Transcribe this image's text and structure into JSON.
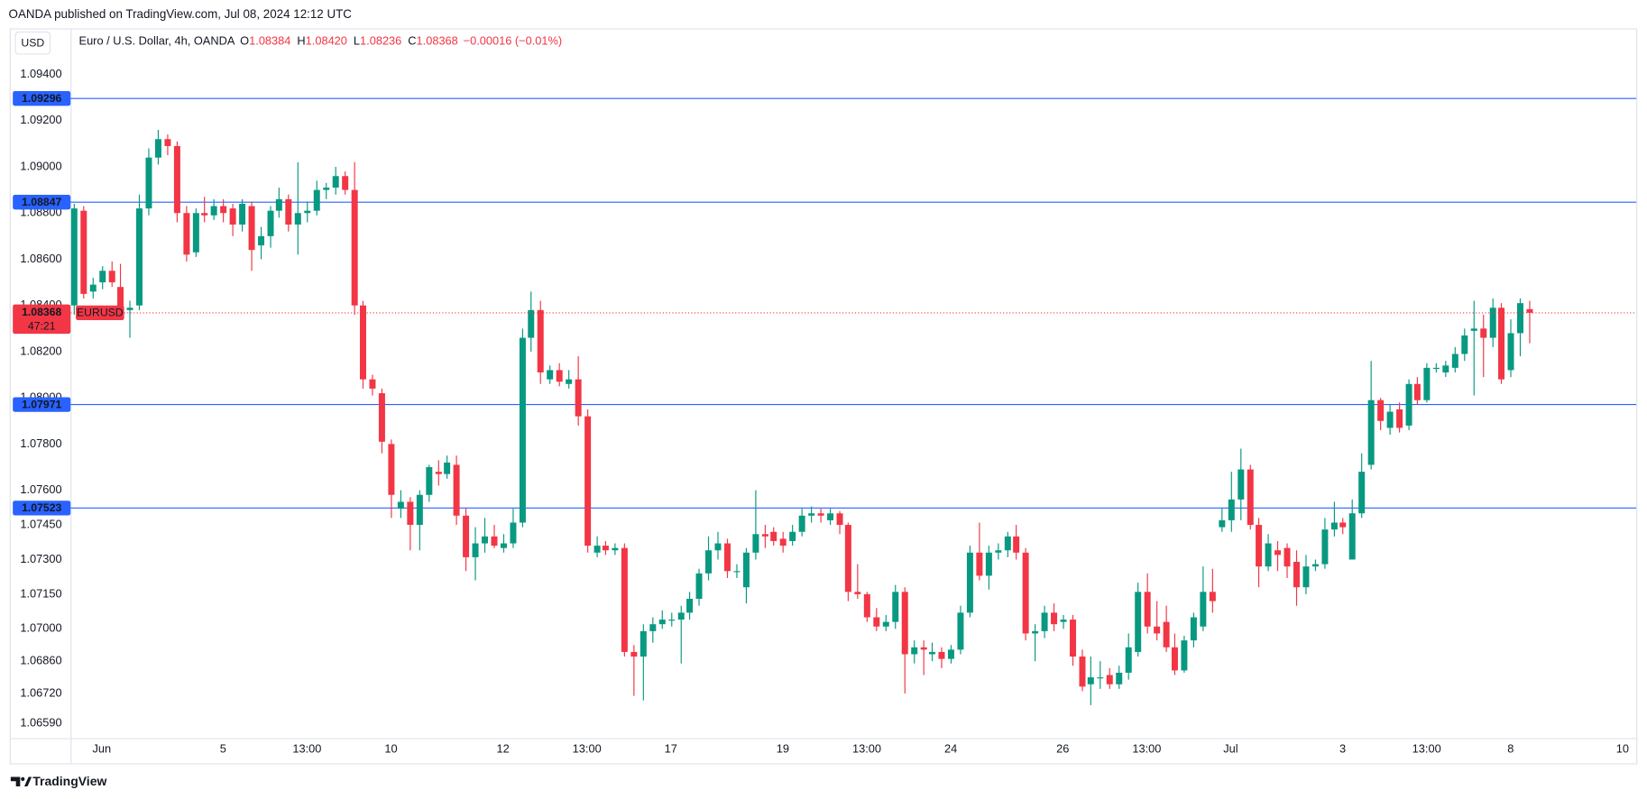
{
  "header": "OANDA published on TradingView.com, Jul 08, 2024 12:12 UTC",
  "footer": "TradingView",
  "chart_data": {
    "type": "candlestick",
    "currency_button": "USD",
    "legend": {
      "title": "Euro / U.S. Dollar, 4h, OANDA",
      "items": [
        {
          "key": "O",
          "value": "1.08384"
        },
        {
          "key": "H",
          "value": "1.08420"
        },
        {
          "key": "L",
          "value": "1.08236"
        },
        {
          "key": "C",
          "value": "1.08368"
        }
      ],
      "change": "−0.00016 (−0.01%)"
    },
    "up_color": "#089981",
    "down_color": "#f23645",
    "ylim": [
      1.06527,
      1.09595
    ],
    "yticks": [
      {
        "value": 1.094,
        "label": "1.09400"
      },
      {
        "value": 1.092,
        "label": "1.09200"
      },
      {
        "value": 1.09,
        "label": "1.09000"
      },
      {
        "value": 1.088,
        "label": "1.08800"
      },
      {
        "value": 1.086,
        "label": "1.08600"
      },
      {
        "value": 1.084,
        "label": "1.08400"
      },
      {
        "value": 1.082,
        "label": "1.08200"
      },
      {
        "value": 1.08,
        "label": "1.08000"
      },
      {
        "value": 1.078,
        "label": "1.07800"
      },
      {
        "value": 1.076,
        "label": "1.07600"
      },
      {
        "value": 1.0745,
        "label": "1.07450"
      },
      {
        "value": 1.073,
        "label": "1.07300"
      },
      {
        "value": 1.0715,
        "label": "1.07150"
      },
      {
        "value": 1.07,
        "label": "1.07000"
      },
      {
        "value": 1.0686,
        "label": "1.06860"
      },
      {
        "value": 1.0672,
        "label": "1.06720"
      },
      {
        "value": 1.0659,
        "label": "1.06590"
      }
    ],
    "xlim": [
      -0.34,
      167.47
    ],
    "xticks": [
      {
        "value": 3,
        "label": "Jun"
      },
      {
        "value": 16,
        "label": "5"
      },
      {
        "value": 25,
        "label": "13:00"
      },
      {
        "value": 34,
        "label": "10"
      },
      {
        "value": 46,
        "label": "12"
      },
      {
        "value": 55,
        "label": "13:00"
      },
      {
        "value": 64,
        "label": "17"
      },
      {
        "value": 76,
        "label": "19"
      },
      {
        "value": 85,
        "label": "13:00"
      },
      {
        "value": 94,
        "label": "24"
      },
      {
        "value": 106,
        "label": "26"
      },
      {
        "value": 115,
        "label": "13:00"
      },
      {
        "value": 124,
        "label": "Jul"
      },
      {
        "value": 136,
        "label": "3"
      },
      {
        "value": 145,
        "label": "13:00"
      },
      {
        "value": 154,
        "label": "8"
      },
      {
        "value": 166,
        "label": "10"
      }
    ],
    "levels": {
      "color": "#2962ff",
      "lines": [
        {
          "value": 1.09296,
          "label": "1.09296"
        },
        {
          "value": 1.08847,
          "label": "1.08847"
        },
        {
          "value": 1.07971,
          "label": "1.07971"
        },
        {
          "value": 1.07523,
          "label": "1.07523"
        }
      ]
    },
    "last_price": {
      "value": 1.08368,
      "label": "1.08368",
      "countdown": "47:21",
      "symbol": "EURUSD"
    },
    "candles": [
      [
        1.084,
        1.0884,
        1.0836,
        1.0882
      ],
      [
        1.0881,
        1.0883,
        1.0843,
        1.0845
      ],
      [
        1.0846,
        1.0852,
        1.0843,
        1.0849
      ],
      [
        1.085,
        1.0857,
        1.0847,
        1.0855
      ],
      [
        1.0855,
        1.0859,
        1.0848,
        1.085
      ],
      [
        1.0848,
        1.0858,
        1.0836,
        1.0838
      ],
      [
        1.0838,
        1.0842,
        1.0826,
        1.0839
      ],
      [
        1.084,
        1.0888,
        1.0838,
        1.0882
      ],
      [
        1.0882,
        1.0908,
        1.0879,
        1.0904
      ],
      [
        1.0904,
        1.0916,
        1.0901,
        1.0912
      ],
      [
        1.0912,
        1.0914,
        1.0905,
        1.0909
      ],
      [
        1.0909,
        1.0911,
        1.0876,
        1.088
      ],
      [
        1.088,
        1.0883,
        1.0859,
        1.0862
      ],
      [
        1.0863,
        1.0882,
        1.0861,
        1.088
      ],
      [
        1.088,
        1.0887,
        1.0876,
        1.0879
      ],
      [
        1.0879,
        1.0886,
        1.0877,
        1.0883
      ],
      [
        1.0883,
        1.0886,
        1.0876,
        1.088
      ],
      [
        1.0882,
        1.0884,
        1.087,
        1.0875
      ],
      [
        1.0875,
        1.0886,
        1.0872,
        1.0884
      ],
      [
        1.0883,
        1.0885,
        1.0855,
        1.0864
      ],
      [
        1.0866,
        1.0874,
        1.086,
        1.087
      ],
      [
        1.087,
        1.0883,
        1.0865,
        1.0881
      ],
      [
        1.0881,
        1.0891,
        1.0878,
        1.0886
      ],
      [
        1.0886,
        1.0888,
        1.0872,
        1.0875
      ],
      [
        1.0875,
        1.0902,
        1.0862,
        1.088
      ],
      [
        1.088,
        1.0885,
        1.0876,
        1.0881
      ],
      [
        1.0881,
        1.0894,
        1.0879,
        1.089
      ],
      [
        1.089,
        1.0893,
        1.0886,
        1.0891
      ],
      [
        1.0891,
        1.09,
        1.0888,
        1.0896
      ],
      [
        1.0896,
        1.0898,
        1.0888,
        1.089
      ],
      [
        1.089,
        1.0902,
        1.0836,
        1.084
      ],
      [
        1.084,
        1.0842,
        1.0804,
        1.0808
      ],
      [
        1.0808,
        1.081,
        1.0801,
        1.0804
      ],
      [
        1.0802,
        1.0804,
        1.0776,
        1.0781
      ],
      [
        1.078,
        1.0782,
        1.0748,
        1.0758
      ],
      [
        1.0752,
        1.076,
        1.0748,
        1.0755
      ],
      [
        1.0755,
        1.0757,
        1.0734,
        1.0745
      ],
      [
        1.0745,
        1.076,
        1.0734,
        1.0758
      ],
      [
        1.0758,
        1.0771,
        1.0755,
        1.077
      ],
      [
        1.0768,
        1.0773,
        1.0762,
        1.0767
      ],
      [
        1.0767,
        1.0775,
        1.0765,
        1.0772
      ],
      [
        1.0771,
        1.0775,
        1.0745,
        1.0749
      ],
      [
        1.0749,
        1.0752,
        1.0725,
        1.0731
      ],
      [
        1.0731,
        1.0744,
        1.0721,
        1.0737
      ],
      [
        1.0737,
        1.0748,
        1.0733,
        1.074
      ],
      [
        1.074,
        1.0745,
        1.0735,
        1.0736
      ],
      [
        1.0735,
        1.0741,
        1.0733,
        1.0737
      ],
      [
        1.0737,
        1.0752,
        1.0735,
        1.0746
      ],
      [
        1.0746,
        1.083,
        1.0744,
        1.0826
      ],
      [
        1.0826,
        1.0846,
        1.082,
        1.0838
      ],
      [
        1.0838,
        1.0842,
        1.0806,
        1.0811
      ],
      [
        1.0808,
        1.0814,
        1.0806,
        1.0812
      ],
      [
        1.0812,
        1.0815,
        1.0805,
        1.0807
      ],
      [
        1.0806,
        1.0812,
        1.0804,
        1.0808
      ],
      [
        1.0808,
        1.0818,
        1.0788,
        1.0792
      ],
      [
        1.0792,
        1.0795,
        1.0733,
        1.0736
      ],
      [
        1.0733,
        1.074,
        1.0731,
        1.0736
      ],
      [
        1.0736,
        1.0738,
        1.0732,
        1.0734
      ],
      [
        1.0734,
        1.0737,
        1.0732,
        1.0735
      ],
      [
        1.0735,
        1.0737,
        1.0688,
        1.069
      ],
      [
        1.069,
        1.0693,
        1.0671,
        1.0688
      ],
      [
        1.0688,
        1.0702,
        1.0669,
        1.0699
      ],
      [
        1.0699,
        1.0705,
        1.0694,
        1.0702
      ],
      [
        1.0702,
        1.0708,
        1.07,
        1.0704
      ],
      [
        1.0704,
        1.0707,
        1.0701,
        1.0704
      ],
      [
        1.0704,
        1.071,
        1.0685,
        1.0707
      ],
      [
        1.0707,
        1.0716,
        1.0704,
        1.0713
      ],
      [
        1.0713,
        1.0726,
        1.071,
        1.0724
      ],
      [
        1.0724,
        1.074,
        1.0721,
        1.0734
      ],
      [
        1.0734,
        1.0742,
        1.073,
        1.0737
      ],
      [
        1.0737,
        1.0739,
        1.0722,
        1.0725
      ],
      [
        1.0725,
        1.0728,
        1.0722,
        1.0725
      ],
      [
        1.0718,
        1.0735,
        1.0711,
        1.0733
      ],
      [
        1.0733,
        1.076,
        1.073,
        1.0741
      ],
      [
        1.0741,
        1.0745,
        1.0735,
        1.074
      ],
      [
        1.0742,
        1.0744,
        1.0736,
        1.0738
      ],
      [
        1.0739,
        1.0742,
        1.0733,
        1.0736
      ],
      [
        1.0738,
        1.0745,
        1.0736,
        1.0742
      ],
      [
        1.0742,
        1.0752,
        1.074,
        1.0749
      ],
      [
        1.0749,
        1.0753,
        1.0746,
        1.075
      ],
      [
        1.075,
        1.0752,
        1.0746,
        1.0749
      ],
      [
        1.0747,
        1.0752,
        1.0745,
        1.075
      ],
      [
        1.075,
        1.0751,
        1.0741,
        1.0745
      ],
      [
        1.0745,
        1.0746,
        1.0712,
        1.0716
      ],
      [
        1.0716,
        1.0728,
        1.0713,
        1.0715
      ],
      [
        1.0715,
        1.0716,
        1.0703,
        1.0705
      ],
      [
        1.0705,
        1.0709,
        1.0699,
        1.0701
      ],
      [
        1.0701,
        1.0706,
        1.0699,
        1.0703
      ],
      [
        1.0703,
        1.0719,
        1.07,
        1.0716
      ],
      [
        1.0716,
        1.0718,
        1.0672,
        1.0689
      ],
      [
        1.0689,
        1.0695,
        1.0685,
        1.0692
      ],
      [
        1.0692,
        1.0695,
        1.068,
        1.0691
      ],
      [
        1.0689,
        1.0694,
        1.0686,
        1.069
      ],
      [
        1.069,
        1.0692,
        1.0683,
        1.0687
      ],
      [
        1.0687,
        1.0693,
        1.0685,
        1.0691
      ],
      [
        1.0691,
        1.071,
        1.0689,
        1.0707
      ],
      [
        1.0707,
        1.0736,
        1.0705,
        1.0733
      ],
      [
        1.0733,
        1.0746,
        1.0721,
        1.0723
      ],
      [
        1.0723,
        1.0736,
        1.0717,
        1.0733
      ],
      [
        1.0733,
        1.0737,
        1.073,
        1.0734
      ],
      [
        1.0734,
        1.0742,
        1.0731,
        1.074
      ],
      [
        1.074,
        1.0745,
        1.073,
        1.0733
      ],
      [
        1.0733,
        1.0735,
        1.0695,
        1.0698
      ],
      [
        1.0698,
        1.0702,
        1.0686,
        1.0699
      ],
      [
        1.0699,
        1.071,
        1.0696,
        1.0707
      ],
      [
        1.0707,
        1.0711,
        1.0699,
        1.0702
      ],
      [
        1.0703,
        1.0706,
        1.07,
        1.0704
      ],
      [
        1.0704,
        1.0706,
        1.0684,
        1.0688
      ],
      [
        1.0688,
        1.0691,
        1.0673,
        1.0675
      ],
      [
        1.0676,
        1.0688,
        1.0667,
        1.0679
      ],
      [
        1.0679,
        1.0686,
        1.0674,
        1.0679
      ],
      [
        1.068,
        1.0683,
        1.0674,
        1.0676
      ],
      [
        1.0676,
        1.0684,
        1.0674,
        1.0681
      ],
      [
        1.0681,
        1.0698,
        1.0678,
        1.0692
      ],
      [
        1.069,
        1.072,
        1.0688,
        1.0716
      ],
      [
        1.0716,
        1.0724,
        1.0698,
        1.0701
      ],
      [
        1.0701,
        1.0712,
        1.0695,
        1.0698
      ],
      [
        1.0703,
        1.071,
        1.069,
        1.0692
      ],
      [
        1.0692,
        1.0698,
        1.068,
        1.0682
      ],
      [
        1.0682,
        1.0697,
        1.0681,
        1.0695
      ],
      [
        1.0695,
        1.0707,
        1.0692,
        1.0705
      ],
      [
        1.0701,
        1.0727,
        1.0699,
        1.0716
      ],
      [
        1.0716,
        1.0726,
        1.0707,
        1.0712
      ],
      [
        1.0744,
        1.0752,
        1.0742,
        1.0747
      ],
      [
        1.0747,
        1.0768,
        1.0742,
        1.0756
      ],
      [
        1.0756,
        1.0778,
        1.0747,
        1.0769
      ],
      [
        1.0769,
        1.0771,
        1.0743,
        1.0745
      ],
      [
        1.0745,
        1.0748,
        1.0718,
        1.0727
      ],
      [
        1.0727,
        1.0741,
        1.0725,
        1.0737
      ],
      [
        1.0734,
        1.0738,
        1.0725,
        1.0732
      ],
      [
        1.0735,
        1.0737,
        1.0722,
        1.0727
      ],
      [
        1.0729,
        1.0734,
        1.071,
        1.0718
      ],
      [
        1.0718,
        1.0732,
        1.0715,
        1.0727
      ],
      [
        1.0727,
        1.073,
        1.0725,
        1.0728
      ],
      [
        1.0728,
        1.0748,
        1.0726,
        1.0743
      ],
      [
        1.0743,
        1.0755,
        1.074,
        1.0746
      ],
      [
        1.0746,
        1.0748,
        1.0741,
        1.0744
      ],
      [
        1.073,
        1.0756,
        1.073,
        1.075
      ],
      [
        1.075,
        1.0776,
        1.0748,
        1.0768
      ],
      [
        1.0771,
        1.0816,
        1.0769,
        1.0799
      ],
      [
        1.0799,
        1.08,
        1.0786,
        1.079
      ],
      [
        1.0787,
        1.0797,
        1.0784,
        1.0794
      ],
      [
        1.0795,
        1.0798,
        1.0785,
        1.0787
      ],
      [
        1.0788,
        1.0808,
        1.0786,
        1.0806
      ],
      [
        1.0806,
        1.0809,
        1.0797,
        1.0799
      ],
      [
        1.0799,
        1.0815,
        1.0798,
        1.0813
      ],
      [
        1.0813,
        1.0815,
        1.0811,
        1.0813
      ],
      [
        1.0811,
        1.0816,
        1.0809,
        1.0814
      ],
      [
        1.0813,
        1.0822,
        1.0811,
        1.0819
      ],
      [
        1.0819,
        1.083,
        1.0816,
        1.0827
      ],
      [
        1.0829,
        1.0842,
        1.0801,
        1.083
      ],
      [
        1.083,
        1.0836,
        1.0809,
        1.0826
      ],
      [
        1.0826,
        1.0843,
        1.0822,
        1.0839
      ],
      [
        1.0839,
        1.0841,
        1.0806,
        1.0808
      ],
      [
        1.0812,
        1.0834,
        1.0809,
        1.0828
      ],
      [
        1.0828,
        1.0843,
        1.0818,
        1.0841
      ],
      [
        1.08384,
        1.0842,
        1.08236,
        1.08368
      ]
    ]
  }
}
